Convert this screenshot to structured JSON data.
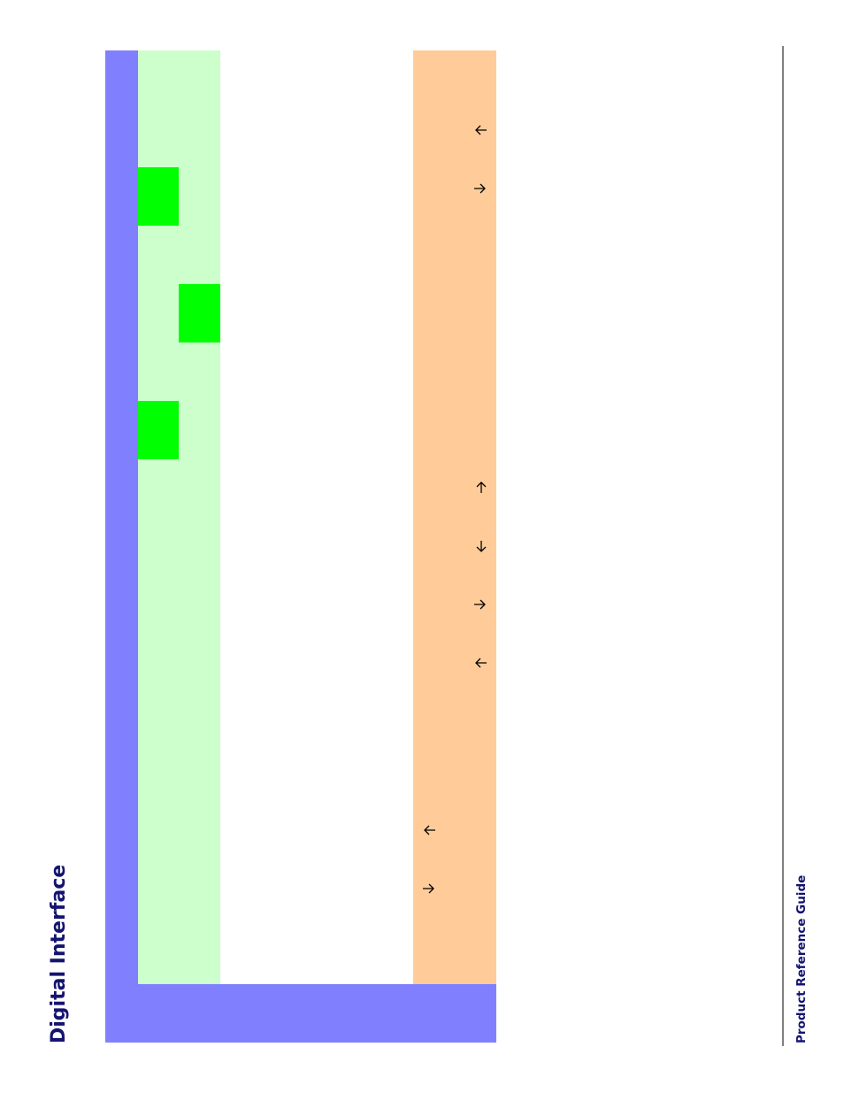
{
  "header": {
    "title": "Digital Interface"
  },
  "footer": {
    "text": "Product Reference Guide"
  }
}
